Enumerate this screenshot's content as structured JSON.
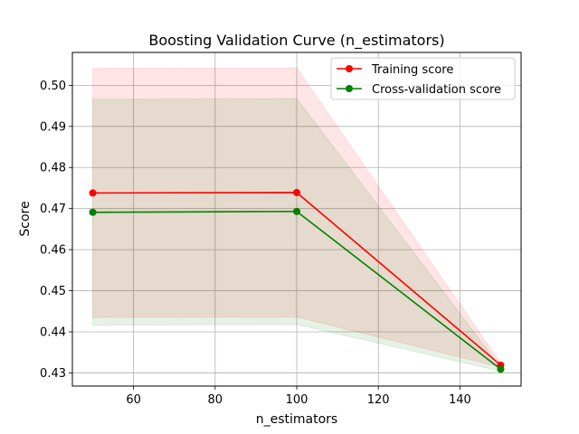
{
  "chart_data": {
    "type": "line",
    "title": "Boosting Validation Curve (n_estimators)",
    "xlabel": "n_estimators",
    "ylabel": "Score",
    "x": [
      50,
      100,
      150
    ],
    "xlim": [
      45,
      155
    ],
    "ylim": [
      0.4268,
      0.508
    ],
    "xticks": [
      60,
      80,
      100,
      120,
      140
    ],
    "yticks": [
      0.43,
      0.44,
      0.45,
      0.46,
      0.47,
      0.48,
      0.49,
      0.5
    ],
    "ytick_labels": [
      "0.43",
      "0.44",
      "0.45",
      "0.46",
      "0.47",
      "0.48",
      "0.49",
      "0.50"
    ],
    "grid": true,
    "legend_position": "top-right",
    "series": [
      {
        "name": "Training score",
        "color": "#ff0000",
        "marker": "circle",
        "values": [
          0.4738,
          0.4739,
          0.4319
        ],
        "band_upper": [
          0.5041,
          0.5042,
          0.4324
        ],
        "band_lower": [
          0.4435,
          0.4436,
          0.4314
        ]
      },
      {
        "name": "Cross-validation score",
        "color": "#008000",
        "marker": "circle",
        "values": [
          0.4691,
          0.4693,
          0.4309
        ],
        "band_upper": [
          0.4966,
          0.4968,
          0.4314
        ],
        "band_lower": [
          0.4416,
          0.4418,
          0.4304
        ]
      }
    ]
  }
}
